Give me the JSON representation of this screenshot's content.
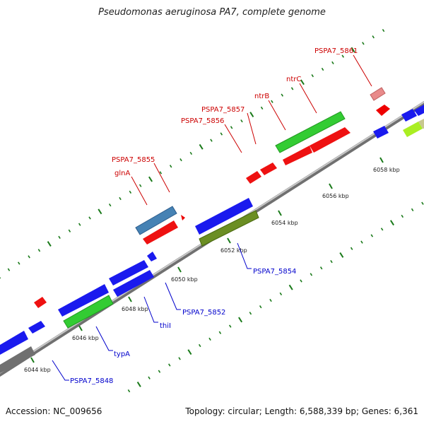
{
  "title": "Pseudomonas aeruginosa PA7, complete genome",
  "footer": {
    "accession": "Accession: NC_009656",
    "summary": "Topology: circular; Length: 6,588,339 bp; Genes: 6,361"
  },
  "colors": {
    "backbone": "#8c8c8c",
    "plus_label": "#cc0000",
    "minus_label": "#0000cc",
    "tick": "#1a7a1a"
  },
  "scale_ticks": [
    "6044 kbp",
    "6046 kbp",
    "6048 kbp",
    "6050 kbp",
    "6052 kbp",
    "6054 kbp",
    "6056 kbp",
    "6058 kbp"
  ],
  "gene_labels_top": [
    "PSPA7_5861",
    "ntrC",
    "ntrB",
    "PSPA7_5857",
    "PSPA7_5856",
    "PSPA7_5855",
    "glnA"
  ],
  "gene_labels_bottom": [
    "PSPA7_5854",
    "PSPA7_5852",
    "thiI",
    "typA",
    "PSPA7_5848"
  ]
}
